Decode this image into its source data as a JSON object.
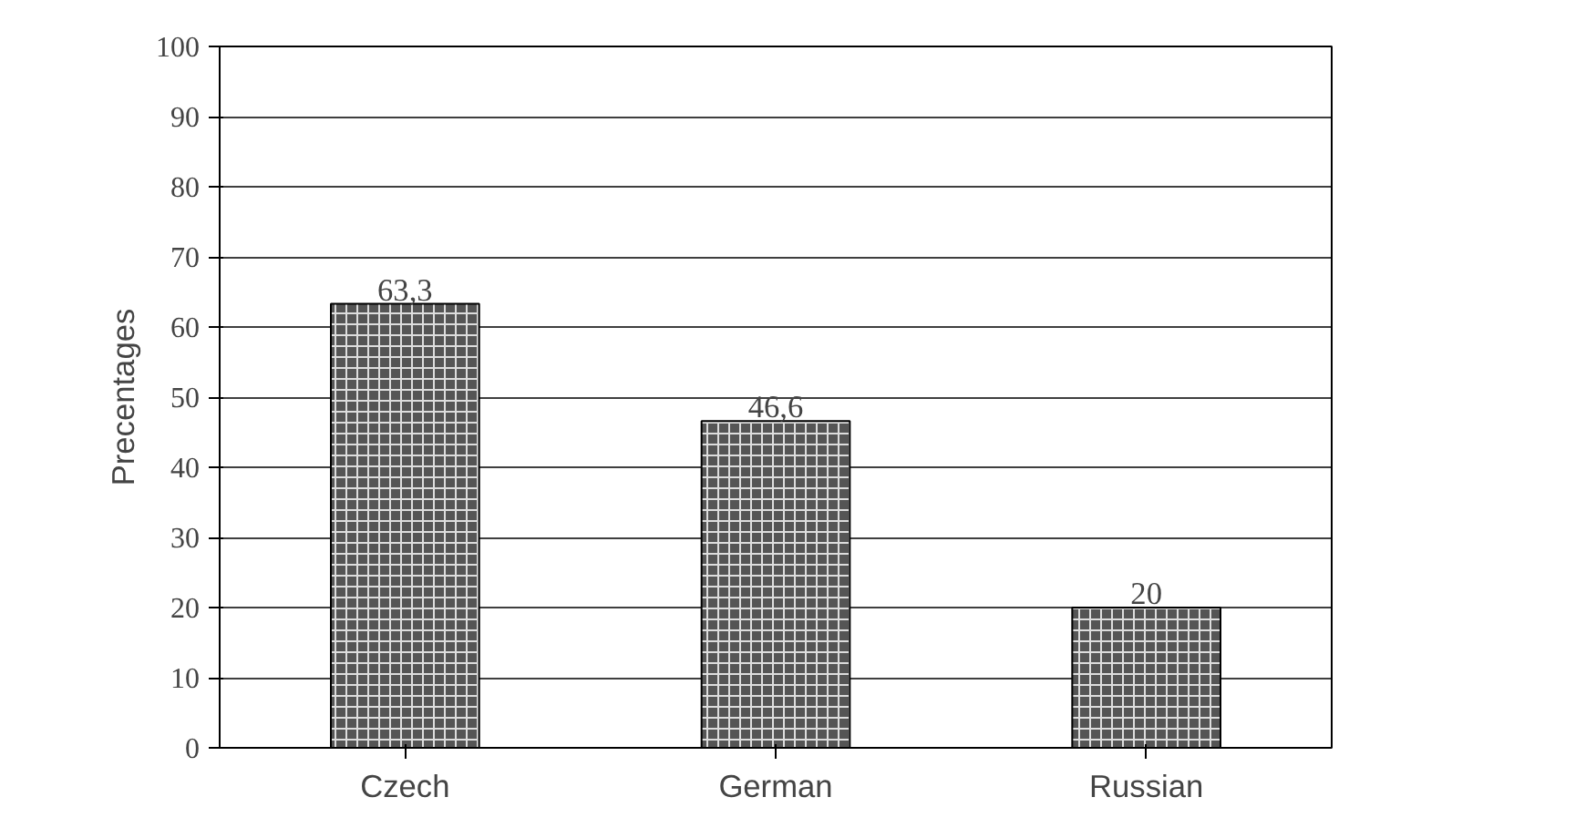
{
  "chart_data": {
    "type": "bar",
    "ylabel": "Precentages",
    "categories": [
      "Czech",
      "German",
      "Russian"
    ],
    "values": [
      63.3,
      46.6,
      20
    ],
    "value_labels": [
      "63,3",
      "46,6",
      "20"
    ],
    "color": "#555555",
    "ylim": [
      0,
      100
    ],
    "yticks": [
      0,
      10,
      20,
      30,
      40,
      50,
      60,
      70,
      80,
      90,
      100
    ],
    "grid": "y"
  }
}
